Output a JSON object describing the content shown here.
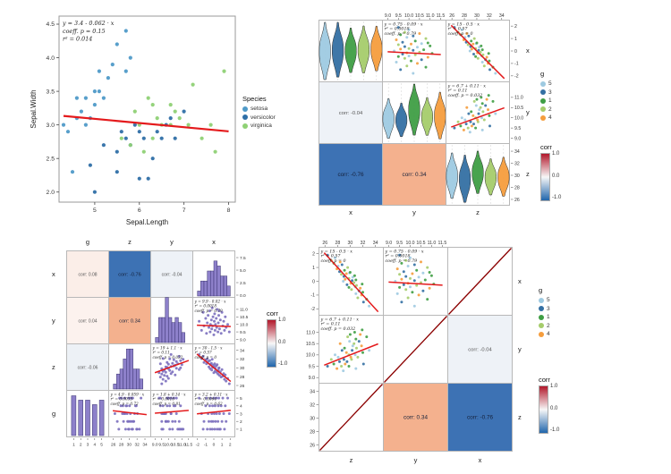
{
  "colors": {
    "fit_line": "#e41a1c",
    "diag_line": "#8b0000",
    "purple_point": "#7b6fbe",
    "purple_fill": "#8d80ca",
    "purple_edge": "#3a3370",
    "tile_neg": "#3d72b4",
    "tile_pos": "#f4b18e",
    "tile_text": "#15213b",
    "corr_text": "#555555",
    "border": "#b8b8b8",
    "axis_text": "#333333",
    "gradient_top": "#b2182b",
    "gradient_mid": "#f7f7f7",
    "gradient_bottom": "#2166ac",
    "g_palette": {
      "1": "#3f9e44",
      "2": "#a5cc6b",
      "3": "#3470a3",
      "4": "#f59d3d",
      "5": "#9ecae1"
    },
    "species_palette": {
      "setosa": "#4f9ac8",
      "versicolor": "#2f6fa7",
      "virginica": "#8fd175"
    }
  },
  "g_order": [
    5,
    3,
    1,
    2,
    4
  ],
  "ranges": {
    "x": [
      -2.3,
      2.3
    ],
    "y": [
      8.85,
      11.65
    ],
    "z": [
      25.4,
      34.9
    ],
    "g": [
      0.3,
      5.7
    ],
    "count": [
      0,
      8.4
    ]
  },
  "dataset": {
    "x": [
      -1.8,
      -1.5,
      -1.3,
      -1.2,
      -1.0,
      -0.9,
      -0.8,
      -0.7,
      -0.6,
      -0.5,
      -0.45,
      -0.4,
      -0.3,
      -0.25,
      -0.2,
      -0.15,
      -0.1,
      0.0,
      0.05,
      0.1,
      0.15,
      0.2,
      0.3,
      0.35,
      0.4,
      0.5,
      0.55,
      0.6,
      0.7,
      0.8,
      0.9,
      1.0,
      1.1,
      1.2,
      1.3,
      1.4,
      1.5,
      1.7,
      1.9,
      0.65
    ],
    "y": [
      10.2,
      9.6,
      10.8,
      9.9,
      10.4,
      9.4,
      10.1,
      10.6,
      9.8,
      10.9,
      9.5,
      10.0,
      10.3,
      9.7,
      11.1,
      9.9,
      10.5,
      9.3,
      10.2,
      10.7,
      9.6,
      10.0,
      10.4,
      9.8,
      11.0,
      9.5,
      10.1,
      10.6,
      9.7,
      10.3,
      9.4,
      10.8,
      9.9,
      10.2,
      9.6,
      10.5,
      9.8,
      10.0,
      9.5,
      10.9
    ],
    "z": [
      33.0,
      32.1,
      32.6,
      31.2,
      31.8,
      30.9,
      32.0,
      31.4,
      30.2,
      31.6,
      29.8,
      30.8,
      31.0,
      29.5,
      31.9,
      30.1,
      30.6,
      28.9,
      30.3,
      30.9,
      29.2,
      29.8,
      30.4,
      29.0,
      30.7,
      28.6,
      29.4,
      29.9,
      28.3,
      29.1,
      27.9,
      29.6,
      28.1,
      28.7,
      27.4,
      28.4,
      27.0,
      27.6,
      26.4,
      30.0
    ],
    "g": [
      5,
      3,
      1,
      2,
      4,
      5,
      1,
      3,
      2,
      4,
      1,
      5,
      2,
      3,
      1,
      4,
      2,
      5,
      3,
      1,
      4,
      2,
      5,
      3,
      1,
      2,
      4,
      5,
      3,
      1,
      4,
      2,
      5,
      3,
      1,
      4,
      2,
      5,
      3,
      1
    ]
  },
  "equations": {
    "eq_xy": {
      "label": [
        "y = 0.75 - 0.09 · x",
        "r² = 0.0018",
        "coeff. p = 0.79"
      ],
      "intercept": 0.75,
      "slope": -0.09
    },
    "eq_xz": {
      "label": [
        "y = 15 - 0.5 · x",
        "r² = 0.57",
        "coeff. p = 0"
      ],
      "intercept": 15,
      "slope": -0.5
    },
    "eq_yz": {
      "label": [
        "y = 6.7 + 0.11 · x",
        "r² = 0.11",
        "coeff. p = 0.032"
      ],
      "intercept": 6.7,
      "slope": 0.11
    },
    "eq_yx": {
      "label": [
        "y = 9.9 - 0.02 · x",
        "r² = 0.0018",
        "coeff. p = 0.79"
      ],
      "intercept": 9.9,
      "slope": -0.02
    },
    "eq_zy": {
      "label": [
        "y = 19 + 1.1 · x",
        "r² = 0.11",
        "coeff. p = 0.032"
      ],
      "intercept": 19,
      "slope": 1.1
    },
    "eq_zx": {
      "label": [
        "y = 30 - 1.5 · x",
        "r² = 0.57",
        "coeff. p = 0"
      ],
      "intercept": 30,
      "slope": -1.5
    },
    "eq_gz": {
      "label": [
        "y = 4.9 - 0.059 · x",
        "r² = 0.0035",
        "coeff. p = 0.72"
      ],
      "intercept": 4.9,
      "slope": -0.059
    },
    "eq_gy": {
      "label": [
        "y = 1.8 + 0.14 · x",
        "r² = 0.0016",
        "coeff. p = 0.81"
      ],
      "intercept": 1.8,
      "slope": 0.14
    },
    "eq_gx": {
      "label": [
        "y = 3.2 + 0.11 · x",
        "r² = 0.0064",
        "coeff. p = 0.62"
      ],
      "intercept": 3.2,
      "slope": 0.11
    }
  },
  "legend_g": {
    "title": "g",
    "items": [
      {
        "label": "5"
      },
      {
        "label": "3"
      },
      {
        "label": "1"
      },
      {
        "label": "2"
      },
      {
        "label": "4"
      }
    ]
  },
  "legend_corr": {
    "title": "corr",
    "ticks": [
      "1.0",
      "0.0",
      "-1.0"
    ]
  },
  "chart_data": [
    {
      "type": "scatter",
      "xlabel": "Sepal.Length",
      "ylabel": "Sepal.Width",
      "xlim": [
        4.2,
        8.15
      ],
      "ylim": [
        1.85,
        4.62
      ],
      "xticks": [
        "5",
        "6",
        "7",
        "8"
      ],
      "yticks": [
        "2.0",
        "2.5",
        "3.0",
        "3.5",
        "4.0",
        "4.5"
      ],
      "annotation": [
        "y = 3.4 - 0.062 · x",
        "coeff. p = 0.15",
        "r² = 0.014"
      ],
      "regression": {
        "intercept": 3.4,
        "slope": -0.062
      },
      "legend_title": "Species",
      "series": [
        {
          "name": "setosa",
          "points": [
            [
              4.3,
              3.0
            ],
            [
              4.4,
              2.9
            ],
            [
              4.5,
              2.3
            ],
            [
              4.6,
              3.1
            ],
            [
              4.6,
              3.4
            ],
            [
              4.7,
              3.2
            ],
            [
              4.8,
              3.0
            ],
            [
              4.8,
              3.4
            ],
            [
              4.9,
              3.1
            ],
            [
              5.0,
              3.3
            ],
            [
              5.0,
              3.5
            ],
            [
              5.1,
              3.5
            ],
            [
              5.1,
              3.8
            ],
            [
              5.2,
              3.4
            ],
            [
              5.3,
              3.7
            ],
            [
              5.4,
              3.9
            ],
            [
              5.5,
              4.2
            ],
            [
              5.7,
              3.8
            ],
            [
              5.7,
              4.4
            ],
            [
              5.8,
              4.0
            ]
          ]
        },
        {
          "name": "versicolor",
          "points": [
            [
              4.9,
              2.4
            ],
            [
              5.0,
              2.0
            ],
            [
              5.2,
              2.7
            ],
            [
              5.5,
              2.3
            ],
            [
              5.5,
              2.6
            ],
            [
              5.6,
              2.9
            ],
            [
              5.7,
              2.8
            ],
            [
              5.8,
              2.7
            ],
            [
              5.9,
              3.0
            ],
            [
              6.0,
              2.2
            ],
            [
              6.0,
              2.9
            ],
            [
              6.1,
              2.8
            ],
            [
              6.2,
              2.2
            ],
            [
              6.3,
              2.5
            ],
            [
              6.4,
              2.9
            ],
            [
              6.5,
              2.8
            ],
            [
              6.6,
              3.0
            ],
            [
              6.7,
              3.1
            ],
            [
              6.8,
              2.8
            ],
            [
              7.0,
              3.2
            ]
          ]
        },
        {
          "name": "virginica",
          "points": [
            [
              5.6,
              2.8
            ],
            [
              5.8,
              2.7
            ],
            [
              5.9,
              3.2
            ],
            [
              6.0,
              3.0
            ],
            [
              6.1,
              2.6
            ],
            [
              6.2,
              3.4
            ],
            [
              6.3,
              2.8
            ],
            [
              6.3,
              3.3
            ],
            [
              6.4,
              3.1
            ],
            [
              6.5,
              3.0
            ],
            [
              6.7,
              3.0
            ],
            [
              6.7,
              3.3
            ],
            [
              6.8,
              3.2
            ],
            [
              6.9,
              3.1
            ],
            [
              7.1,
              3.0
            ],
            [
              7.2,
              3.6
            ],
            [
              7.4,
              2.8
            ],
            [
              7.6,
              3.0
            ],
            [
              7.7,
              2.6
            ],
            [
              7.9,
              3.8
            ]
          ]
        }
      ]
    },
    {
      "type": "scatter-matrix",
      "row_v": [
        "x",
        "y",
        "z"
      ],
      "col_v": [
        "x",
        "y",
        "z"
      ],
      "correlations": {
        "x~y": -0.04,
        "x~z": -0.76,
        "y~z": 0.34
      },
      "cells": [
        [
          {
            "t": "violin",
            "v": "x"
          },
          {
            "t": "sc",
            "x": "y",
            "y": "x",
            "eq": "eq_xy",
            "color": "g"
          },
          {
            "t": "sc",
            "x": "z",
            "y": "x",
            "eq": "eq_xz",
            "color": "g"
          }
        ],
        [
          {
            "t": "ct",
            "text": "corr: -0.04",
            "bg": "#eef2f7"
          },
          {
            "t": "violin",
            "v": "y"
          },
          {
            "t": "sc",
            "x": "z",
            "y": "y",
            "eq": "eq_yz",
            "color": "g"
          }
        ],
        [
          {
            "t": "tile",
            "text": "corr: -0.76",
            "bg": "#3d72b4"
          },
          {
            "t": "tile",
            "text": "corr: 0.34",
            "bg": "#f4b18e"
          },
          {
            "t": "violin",
            "v": "z"
          }
        ]
      ],
      "top_ticks": [
        null,
        {
          "v": "y",
          "labels": [
            "9.0",
            "9.5",
            "10.0",
            "10.5",
            "11.0",
            "11.5"
          ]
        },
        {
          "v": "z",
          "labels": [
            "26",
            "28",
            "30",
            "32",
            "34"
          ]
        }
      ],
      "right_ticks": [
        {
          "v": "x",
          "labels": [
            "2",
            "1",
            "0",
            "-1",
            "-2"
          ]
        },
        {
          "v": "y",
          "labels": [
            "11.0",
            "10.5",
            "10.0",
            "9.5",
            "9.0"
          ]
        },
        {
          "v": "z",
          "labels": [
            "34",
            "32",
            "30",
            "28",
            "26"
          ]
        }
      ],
      "row_labels": [
        "x",
        "y",
        "z"
      ],
      "row_label_side": "right",
      "col_labels_bottom": [
        "x",
        "y",
        "z"
      ]
    },
    {
      "type": "scatter-matrix",
      "row_v": [
        "x",
        "y",
        "z",
        "g"
      ],
      "col_v": [
        "g",
        "z",
        "y",
        "x"
      ],
      "correlations": {
        "x~g": 0.08,
        "x~z": -0.76,
        "x~y": -0.04,
        "y~g": 0.04,
        "y~z": 0.34,
        "z~g": -0.06
      },
      "cells": [
        [
          {
            "t": "ct",
            "text": "corr: 0.08",
            "bg": "#fbeee8"
          },
          {
            "t": "tile",
            "text": "corr: -0.76",
            "bg": "#3d72b4"
          },
          {
            "t": "ct",
            "text": "corr: -0.04",
            "bg": "#eef2f7"
          },
          {
            "t": "hist",
            "v": "x"
          }
        ],
        [
          {
            "t": "ct",
            "text": "corr: 0.04",
            "bg": "#fcf2ee"
          },
          {
            "t": "tile",
            "text": "corr: 0.34",
            "bg": "#f4b18e"
          },
          {
            "t": "hist",
            "v": "y"
          },
          {
            "t": "sc",
            "x": "x",
            "y": "y",
            "eq": "eq_yx",
            "color": "purple"
          }
        ],
        [
          {
            "t": "ct",
            "text": "corr: -0.06",
            "bg": "#edf1f6"
          },
          {
            "t": "hist",
            "v": "z"
          },
          {
            "t": "sc",
            "x": "y",
            "y": "z",
            "eq": "eq_zy",
            "color": "purple"
          },
          {
            "t": "sc",
            "x": "x",
            "y": "z",
            "eq": "eq_zx",
            "color": "purple"
          }
        ],
        [
          {
            "t": "bar"
          },
          {
            "t": "sc",
            "x": "z",
            "y": "g",
            "eq": "eq_gz",
            "color": "purple"
          },
          {
            "t": "sc",
            "x": "y",
            "y": "g",
            "eq": "eq_gy",
            "color": "purple"
          },
          {
            "t": "sc",
            "x": "x",
            "y": "g",
            "eq": "eq_gx",
            "color": "purple"
          }
        ]
      ],
      "right_ticks": [
        {
          "v": "count",
          "labels": [
            "7.5",
            "5.0",
            "2.5",
            "0.0"
          ]
        },
        {
          "v": "y",
          "labels": [
            "11.0",
            "10.5",
            "10.0",
            "9.5",
            "9.0"
          ]
        },
        {
          "v": "z",
          "labels": [
            "34",
            "32",
            "30",
            "28",
            "26"
          ]
        },
        {
          "v": "g",
          "labels": [
            "5",
            "4",
            "3",
            "2",
            "1"
          ]
        }
      ],
      "bottom_ticks": [
        {
          "v": "g",
          "labels": [
            "1",
            "2",
            "3",
            "4",
            "5"
          ]
        },
        {
          "v": "z",
          "labels": [
            "26",
            "28",
            "30",
            "32",
            "34"
          ]
        },
        {
          "v": "y",
          "labels": [
            "9.0",
            "9.5",
            "10.0",
            "10.5",
            "11.0",
            "11.5"
          ]
        },
        {
          "v": "x",
          "labels": [
            "-2",
            "-1",
            "0",
            "1",
            "2"
          ]
        }
      ],
      "row_labels": [
        "x",
        "y",
        "z",
        "g"
      ],
      "row_label_side": "left",
      "col_labels_top": [
        "g",
        "z",
        "y",
        "x"
      ]
    },
    {
      "type": "scatter-matrix",
      "row_v": [
        "x",
        "y",
        "z"
      ],
      "col_v": [
        "z",
        "y",
        "x"
      ],
      "correlations": {
        "y~x": -0.04,
        "z~y": 0.34,
        "z~x": -0.76
      },
      "cells": [
        [
          {
            "t": "sc",
            "x": "z",
            "y": "x",
            "eq": "eq_xz",
            "color": "g"
          },
          {
            "t": "sc",
            "x": "y",
            "y": "x",
            "eq": "eq_xy",
            "color": "g"
          },
          {
            "t": "diag"
          }
        ],
        [
          {
            "t": "sc",
            "x": "z",
            "y": "y",
            "eq": "eq_yz",
            "color": "g"
          },
          {
            "t": "diag"
          },
          {
            "t": "ct",
            "text": "corr: -0.04",
            "bg": "#eef2f7"
          }
        ],
        [
          {
            "t": "diag"
          },
          {
            "t": "tile",
            "text": "corr: 0.34",
            "bg": "#f4b18e"
          },
          {
            "t": "tile",
            "text": "corr: -0.76",
            "bg": "#3d72b4"
          }
        ]
      ],
      "top_ticks": [
        {
          "v": "z",
          "labels": [
            "26",
            "28",
            "30",
            "32",
            "34"
          ]
        },
        {
          "v": "y",
          "labels": [
            "9.0",
            "9.5",
            "10.0",
            "10.5",
            "11.0",
            "11.5"
          ]
        },
        null
      ],
      "left_ticks": [
        {
          "v": "x",
          "labels": [
            "2",
            "1",
            "0",
            "-1",
            "-2"
          ]
        },
        {
          "v": "y",
          "labels": [
            "11.0",
            "10.5",
            "10.0",
            "9.5",
            "9.0"
          ]
        },
        {
          "v": "z",
          "labels": [
            "34",
            "32",
            "30",
            "28",
            "26"
          ]
        }
      ],
      "row_labels": [
        "x",
        "y",
        "z"
      ],
      "row_label_side": "right",
      "col_labels_bottom": [
        "z",
        "y",
        "x"
      ]
    }
  ]
}
